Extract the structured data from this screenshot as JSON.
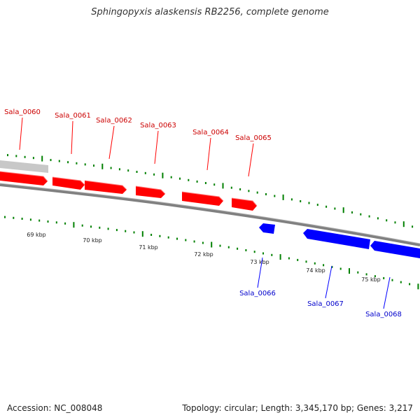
{
  "title": "Sphingopyxis alaskensis RB2256, complete genome",
  "footer": {
    "accession": "Accession: NC_008048",
    "summary": "Topology: circular; Length: 3,345,170 bp; Genes: 3,217"
  },
  "colors": {
    "forward_gene": "#ff0000",
    "reverse_gene": "#0000ff",
    "other_feature": "#c8c8c8",
    "backbone": "#808080",
    "tick": "#008000"
  },
  "scale": {
    "labels": [
      "69 kbp",
      "70 kbp",
      "71 kbp",
      "72 kbp",
      "73 kbp",
      "74 kbp",
      "75 kbp"
    ]
  },
  "genes": {
    "forward": [
      "Sala_0060",
      "Sala_0061",
      "Sala_0062",
      "Sala_0063",
      "Sala_0064",
      "Sala_0065"
    ],
    "reverse": [
      "Sala_0066",
      "Sala_0067",
      "Sala_0068"
    ]
  }
}
